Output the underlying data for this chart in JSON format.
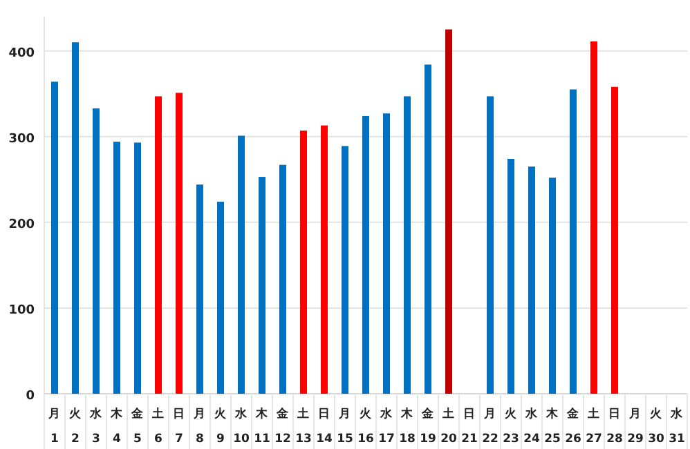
{
  "chart_data": {
    "type": "bar",
    "categories": [
      "月\n1",
      "火\n2",
      "水\n3",
      "木\n4",
      "金\n5",
      "土\n6",
      "日\n7",
      "月\n8",
      "火\n9",
      "水\n10",
      "木\n11",
      "金\n12",
      "土\n13",
      "日\n14",
      "月\n15",
      "火\n16",
      "水\n17",
      "木\n18",
      "金\n19",
      "土\n20",
      "日\n21",
      "月\n22",
      "火\n23",
      "水\n24",
      "木\n25",
      "金\n26",
      "土\n27",
      "日\n28",
      "月\n29",
      "火\n30",
      "水\n31"
    ],
    "values": [
      364,
      410,
      333,
      294,
      293,
      347,
      351,
      244,
      224,
      301,
      253,
      267,
      307,
      313,
      289,
      324,
      327,
      347,
      384,
      425,
      null,
      347,
      274,
      265,
      252,
      355,
      411,
      358,
      null,
      null,
      null
    ],
    "colors": [
      "#0070c0",
      "#0070c0",
      "#0070c0",
      "#0070c0",
      "#0070c0",
      "#ff0000",
      "#ff0000",
      "#0070c0",
      "#0070c0",
      "#0070c0",
      "#0070c0",
      "#0070c0",
      "#ff0000",
      "#ff0000",
      "#0070c0",
      "#0070c0",
      "#0070c0",
      "#0070c0",
      "#0070c0",
      "#c00000",
      null,
      "#0070c0",
      "#0070c0",
      "#0070c0",
      "#0070c0",
      "#0070c0",
      "#ff0000",
      "#ff0000",
      null,
      null,
      null
    ],
    "ylim": [
      0,
      440
    ],
    "yticks": [
      0,
      100,
      200,
      300,
      400
    ],
    "grid": "y"
  }
}
